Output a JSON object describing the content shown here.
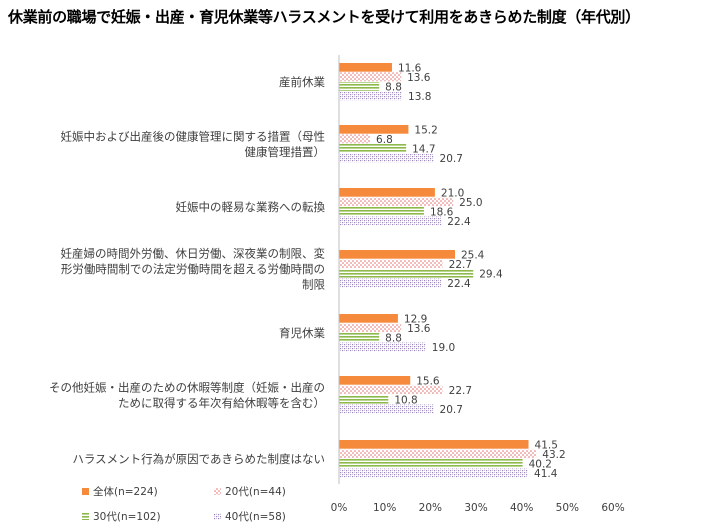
{
  "title": "休業前の職場で妊娠・出産・育児休業等ハラスメントを受けて利用をあきらめた制度（年代別）",
  "chart_data": {
    "type": "bar",
    "orientation": "horizontal",
    "categories": [
      [
        "産前休業"
      ],
      [
        "妊娠中および出産後の健康管理に関する措置（母性",
        "健康管理措置）"
      ],
      [
        "妊娠中の軽易な業務への転換"
      ],
      [
        "妊産婦の時間外労働、休日労働、深夜業の制限、変",
        "形労働時間制での法定労働時間を超える労働時間の",
        "制限"
      ],
      [
        "育児休業"
      ],
      [
        "その他妊娠・出産のための休暇等制度（妊娠・出産の",
        "ために取得する年次有給休暇等を含む）"
      ],
      [
        "ハラスメント行為が原因であきらめた制度はない"
      ]
    ],
    "series": [
      {
        "name": "全体(n=224)",
        "color": "#F58A3C",
        "pattern": "solid",
        "values": [
          11.6,
          15.2,
          21.0,
          25.4,
          12.9,
          15.6,
          41.5
        ]
      },
      {
        "name": "20代(n=44)",
        "color": "#E46C6C",
        "pattern": "dots",
        "values": [
          13.6,
          6.8,
          25.0,
          22.7,
          13.6,
          22.7,
          43.2
        ]
      },
      {
        "name": "30代(n=102)",
        "color": "#8DB84A",
        "pattern": "hlines",
        "values": [
          8.8,
          14.7,
          18.6,
          29.4,
          8.8,
          10.8,
          40.2
        ]
      },
      {
        "name": "40代(n=58)",
        "color": "#9B86BD",
        "pattern": "cross",
        "values": [
          13.8,
          20.7,
          22.4,
          22.4,
          19.0,
          20.7,
          41.4
        ]
      }
    ],
    "value_labels": [
      [
        "11.6",
        "13.6",
        "8.8",
        "13.8"
      ],
      [
        "15.2",
        "6.8",
        "14.7",
        "20.7"
      ],
      [
        "21.0",
        "25.0",
        "18.6",
        "22.4"
      ],
      [
        "25.4",
        "22.7",
        "29.4",
        "22.4"
      ],
      [
        "12.9",
        "13.6",
        "8.8",
        "19.0"
      ],
      [
        "15.6",
        "22.7",
        "10.8",
        "20.7"
      ],
      [
        "41.5",
        "43.2",
        "40.2",
        "41.4"
      ]
    ],
    "xlim": [
      0,
      60
    ],
    "xticks": [
      "0%",
      "10%",
      "20%",
      "30%",
      "40%",
      "50%",
      "60%"
    ],
    "grid": false,
    "legend_position": "bottom-left"
  }
}
